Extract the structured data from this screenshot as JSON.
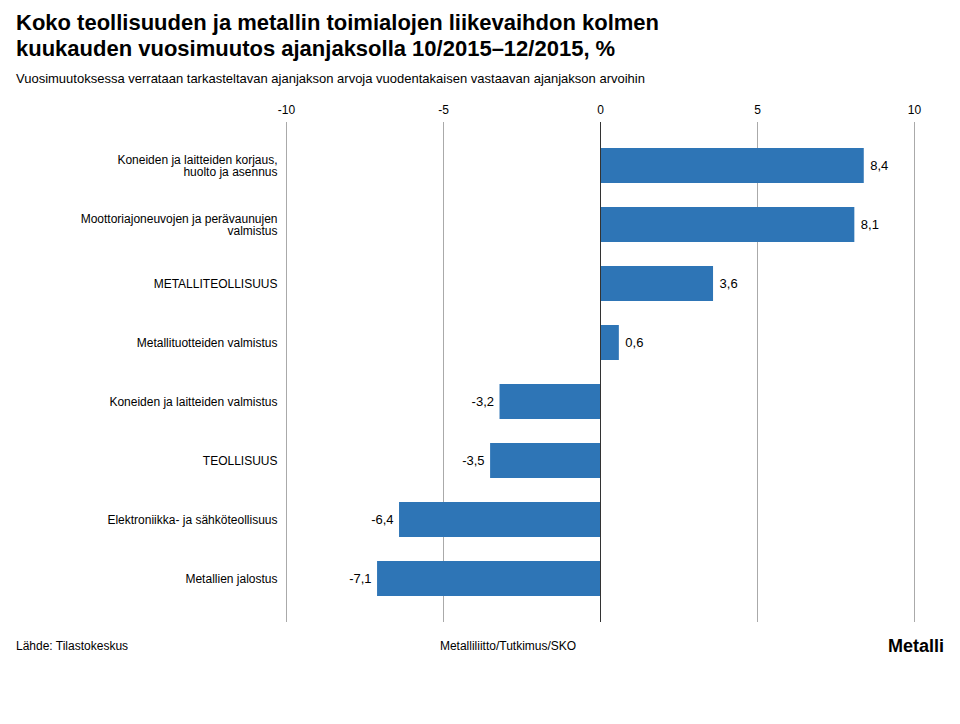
{
  "chart_data": {
    "type": "bar",
    "orientation": "horizontal",
    "title": "Koko teollisuuden ja metallin toimialojen liikevaihdon kolmen\nkuukauden vuosimuutos ajanjaksolla 10/2015–12/2015, %",
    "subtitle": "Vuosimuutoksessa verrataan tarkasteltavan ajanjakson arvoja vuodentakaisen vastaavan ajanjakson arvoihin",
    "categories": [
      "Koneiden ja laitteiden korjaus,\nhuolto ja asennus",
      "Moottoriajoneuvojen ja perävaunujen\nvalmistus",
      "METALLITEOLLISUUS",
      "Metallituotteiden valmistus",
      "Koneiden ja laitteiden valmistus",
      "TEOLLISUUS",
      "Elektroniikka- ja sähköteollisuus",
      "Metallien jalostus"
    ],
    "values": [
      8.4,
      8.1,
      3.6,
      0.6,
      -3.2,
      -3.5,
      -6.4,
      -7.1
    ],
    "value_labels": [
      "8,4",
      "8,1",
      "3,6",
      "0,6",
      "-3,2",
      "-3,5",
      "-6,4",
      "-7,1"
    ],
    "data_labels": true,
    "color": "#2E75B6",
    "xlim": [
      -10,
      10
    ],
    "xticks": [
      -10,
      -5,
      0,
      5,
      10
    ],
    "grid": true,
    "annotations": [
      "Lähde: Tilastokeskus",
      "Metalliliitto/Tutkimus/SKO",
      "Metalli"
    ]
  }
}
